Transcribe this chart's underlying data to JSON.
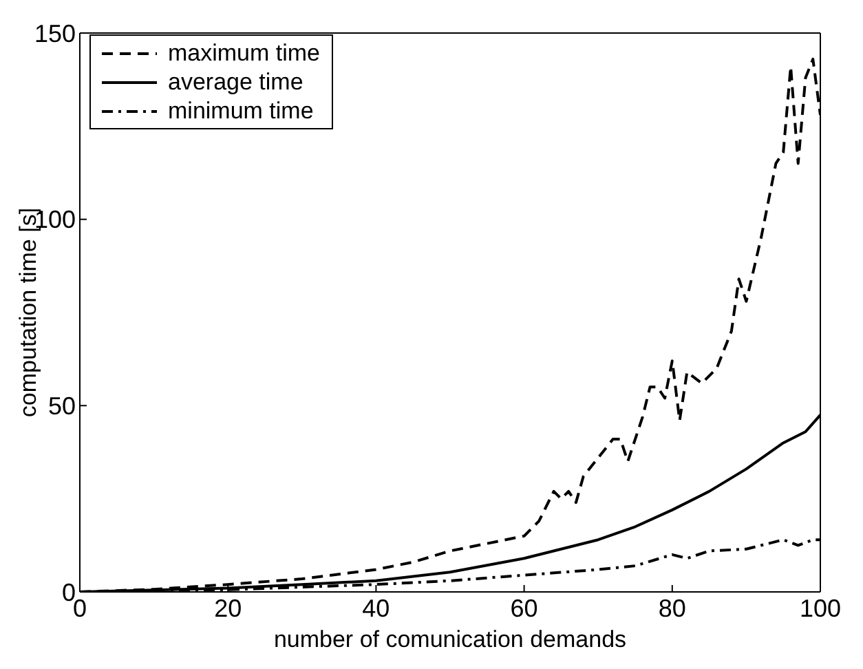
{
  "chart_data": {
    "type": "line",
    "xlabel": "number of comunication demands",
    "ylabel": "computation time [s]",
    "xlim": [
      0,
      100
    ],
    "xticks": [
      0,
      20,
      40,
      60,
      80,
      100
    ],
    "ylim": [
      0,
      150
    ],
    "yticks": [
      0,
      50,
      100,
      150
    ],
    "legend": "top left",
    "marker": "none",
    "series": [
      {
        "name": "maximum time",
        "color": "#000000",
        "line_style": "dashed",
        "x": [
          0,
          10,
          20,
          30,
          40,
          45,
          50,
          55,
          60,
          62,
          64,
          65,
          66,
          67,
          68,
          70,
          72,
          73,
          74,
          76,
          77,
          78,
          79,
          80,
          81,
          82,
          84,
          86,
          88,
          89,
          90,
          92,
          94,
          95,
          96,
          97,
          98,
          99,
          100
        ],
        "values": [
          0,
          0.7,
          2,
          3.5,
          6,
          8,
          11,
          13,
          15,
          19,
          27,
          25,
          27,
          24,
          31,
          36,
          41,
          41,
          35,
          47,
          55,
          55,
          52,
          62,
          46,
          59,
          56,
          60,
          70,
          84,
          78,
          95,
          115,
          118,
          141,
          115,
          138,
          143,
          128
        ]
      },
      {
        "name": "average time",
        "color": "#000000",
        "line_style": "solid",
        "x": [
          0,
          10,
          20,
          30,
          40,
          50,
          60,
          70,
          75,
          80,
          85,
          90,
          95,
          98,
          100
        ],
        "values": [
          0,
          0.5,
          1,
          2,
          3,
          5.3,
          9,
          14,
          17.5,
          22,
          27,
          33,
          40,
          43,
          47.5
        ]
      },
      {
        "name": "minimum time",
        "color": "#000000",
        "line_style": "dashdot",
        "x": [
          0,
          20,
          40,
          50,
          60,
          70,
          75,
          80,
          82,
          85,
          90,
          95,
          97,
          99,
          100
        ],
        "values": [
          0,
          0.6,
          2,
          3,
          4.5,
          6,
          7,
          10,
          9,
          11,
          11.5,
          14,
          12.5,
          14,
          14
        ]
      }
    ]
  }
}
